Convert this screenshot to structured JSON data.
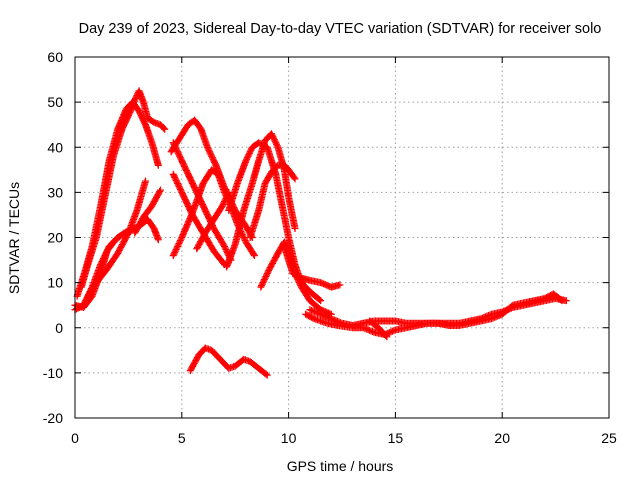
{
  "chart_data": {
    "type": "scatter",
    "title": "Day 239 of 2023, Sidereal Day-to-day VTEC variation (SDTVAR) for receiver solo",
    "xlabel": "GPS time / hours",
    "ylabel": "SDTVAR / TECUs",
    "xlim": [
      0,
      25
    ],
    "ylim": [
      -20,
      60
    ],
    "xticks": [
      0,
      5,
      10,
      15,
      20,
      25
    ],
    "yticks": [
      -20,
      -10,
      0,
      10,
      20,
      30,
      40,
      50,
      60
    ],
    "grid": true,
    "legend": "none",
    "marker": "+",
    "color": "#ff0000",
    "series": [
      {
        "name": "s1",
        "points": [
          [
            0,
            4
          ],
          [
            0.4,
            5
          ],
          [
            0.8,
            9
          ],
          [
            1.2,
            14
          ],
          [
            1.6,
            18
          ],
          [
            2.0,
            20
          ],
          [
            2.5,
            21.5
          ],
          [
            3.0,
            22.5
          ],
          [
            3.4,
            24
          ],
          [
            3.7,
            22
          ],
          [
            3.9,
            19.5
          ]
        ]
      },
      {
        "name": "s2",
        "points": [
          [
            0.1,
            7
          ],
          [
            0.5,
            13
          ],
          [
            0.8,
            18
          ],
          [
            1.2,
            27
          ],
          [
            1.6,
            37
          ],
          [
            2.0,
            44
          ],
          [
            2.4,
            48.5
          ],
          [
            2.7,
            50
          ],
          [
            3.0,
            48
          ],
          [
            3.3,
            45
          ],
          [
            3.6,
            41
          ],
          [
            3.9,
            36
          ]
        ]
      },
      {
        "name": "s3",
        "points": [
          [
            0,
            5
          ],
          [
            0.4,
            4.5
          ],
          [
            0.8,
            7
          ],
          [
            1.2,
            12
          ],
          [
            1.5,
            17
          ],
          [
            1.9,
            19.5
          ],
          [
            2.3,
            21
          ],
          [
            2.6,
            21.5
          ]
        ]
      },
      {
        "name": "s4",
        "points": [
          [
            0.3,
            9
          ],
          [
            0.6,
            14
          ],
          [
            1.0,
            20
          ],
          [
            1.4,
            29
          ],
          [
            1.8,
            38
          ],
          [
            2.2,
            44
          ],
          [
            2.6,
            48
          ],
          [
            2.8,
            50.5
          ],
          [
            3.0,
            52.5
          ],
          [
            3.2,
            50
          ],
          [
            3.4,
            46.5
          ],
          [
            3.7,
            45.5
          ],
          [
            4.0,
            45
          ],
          [
            4.2,
            44
          ]
        ]
      },
      {
        "name": "s5",
        "points": [
          [
            0.6,
            7
          ],
          [
            1.0,
            10
          ],
          [
            1.5,
            13
          ],
          [
            2.0,
            16.5
          ],
          [
            2.5,
            21
          ],
          [
            2.9,
            26
          ],
          [
            3.3,
            32.5
          ]
        ]
      },
      {
        "name": "s6",
        "points": [
          [
            2.8,
            21
          ],
          [
            3.2,
            24.5
          ],
          [
            3.6,
            27
          ],
          [
            4.0,
            30.5
          ]
        ]
      },
      {
        "name": "s7",
        "points": [
          [
            4.6,
            41
          ],
          [
            5.0,
            37
          ],
          [
            5.5,
            32
          ],
          [
            6.0,
            27
          ],
          [
            6.5,
            22
          ],
          [
            7.0,
            18
          ],
          [
            7.3,
            15
          ]
        ]
      },
      {
        "name": "s8",
        "points": [
          [
            4.6,
            34
          ],
          [
            5.0,
            30
          ],
          [
            5.5,
            25
          ],
          [
            6.0,
            21
          ],
          [
            6.5,
            17
          ],
          [
            7.0,
            14
          ]
        ]
      },
      {
        "name": "s9",
        "points": [
          [
            4.6,
            16
          ],
          [
            5.0,
            20
          ],
          [
            5.5,
            25.5
          ],
          [
            6.0,
            32
          ],
          [
            6.4,
            35
          ],
          [
            6.7,
            34
          ],
          [
            7.0,
            30
          ],
          [
            7.3,
            27
          ],
          [
            7.6,
            23
          ],
          [
            8.0,
            19
          ],
          [
            8.4,
            16
          ]
        ]
      },
      {
        "name": "s10",
        "points": [
          [
            4.5,
            39
          ],
          [
            4.9,
            42
          ],
          [
            5.3,
            45
          ],
          [
            5.6,
            46
          ],
          [
            5.9,
            44
          ],
          [
            6.2,
            40
          ],
          [
            6.6,
            36
          ],
          [
            7.0,
            31
          ],
          [
            7.5,
            26
          ],
          [
            8.0,
            22.5
          ],
          [
            8.3,
            20
          ]
        ]
      },
      {
        "name": "s11",
        "points": [
          [
            5.7,
            17.5
          ],
          [
            6.1,
            21
          ],
          [
            6.5,
            24
          ],
          [
            6.9,
            27
          ],
          [
            7.2,
            30
          ]
        ]
      },
      {
        "name": "s12",
        "points": [
          [
            7.1,
            13.5
          ],
          [
            7.5,
            18.5
          ],
          [
            7.9,
            26
          ],
          [
            8.3,
            32
          ],
          [
            8.6,
            37
          ],
          [
            8.9,
            41.5
          ],
          [
            9.2,
            43
          ],
          [
            9.5,
            40
          ],
          [
            9.8,
            35
          ],
          [
            10.0,
            29
          ],
          [
            10.3,
            22
          ]
        ]
      },
      {
        "name": "s13",
        "points": [
          [
            7.2,
            26
          ],
          [
            7.6,
            32
          ],
          [
            8.0,
            37
          ],
          [
            8.3,
            40
          ],
          [
            8.6,
            41
          ],
          [
            9.0,
            40
          ],
          [
            9.4,
            34
          ],
          [
            9.7,
            27
          ],
          [
            10.0,
            20
          ],
          [
            10.3,
            14
          ],
          [
            10.6,
            10
          ],
          [
            11.0,
            8
          ],
          [
            11.5,
            6
          ]
        ]
      },
      {
        "name": "s14",
        "points": [
          [
            8.2,
            20
          ],
          [
            8.6,
            26
          ],
          [
            8.9,
            32
          ],
          [
            9.2,
            34.5
          ],
          [
            9.5,
            36
          ],
          [
            9.8,
            36
          ],
          [
            10.0,
            35
          ],
          [
            10.3,
            33
          ]
        ]
      },
      {
        "name": "s15",
        "points": [
          [
            8.7,
            9
          ],
          [
            9.1,
            13
          ],
          [
            9.5,
            16.5
          ],
          [
            9.8,
            19
          ],
          [
            10.0,
            17
          ],
          [
            10.3,
            12
          ],
          [
            10.6,
            9
          ],
          [
            11.0,
            6
          ],
          [
            11.5,
            4
          ],
          [
            12.0,
            3
          ]
        ]
      },
      {
        "name": "s16",
        "points": [
          [
            9.8,
            18
          ],
          [
            10.2,
            12
          ],
          [
            10.6,
            11
          ],
          [
            11.0,
            10.5
          ],
          [
            11.5,
            10
          ],
          [
            12.0,
            9
          ],
          [
            12.4,
            9.5
          ]
        ]
      },
      {
        "name": "s17",
        "points": [
          [
            11.0,
            4
          ],
          [
            11.5,
            3
          ],
          [
            12.0,
            2
          ],
          [
            12.5,
            1
          ],
          [
            13.0,
            0.5
          ],
          [
            13.5,
            1
          ],
          [
            14.0,
            1.5
          ],
          [
            14.5,
            1.5
          ],
          [
            15.0,
            1.5
          ],
          [
            15.5,
            1
          ],
          [
            16.0,
            1
          ],
          [
            16.5,
            1
          ],
          [
            17.0,
            1
          ],
          [
            17.5,
            1
          ],
          [
            18.0,
            1
          ],
          [
            18.5,
            1.5
          ],
          [
            19.0,
            2
          ],
          [
            19.5,
            3
          ],
          [
            20.0,
            3.5
          ],
          [
            20.5,
            4.5
          ],
          [
            21.0,
            5
          ],
          [
            21.5,
            5.5
          ],
          [
            22.0,
            6
          ],
          [
            22.5,
            6.5
          ],
          [
            23.0,
            6
          ]
        ]
      },
      {
        "name": "s18",
        "points": [
          [
            10.8,
            3
          ],
          [
            11.2,
            2
          ],
          [
            11.8,
            1
          ],
          [
            12.3,
            0.5
          ],
          [
            13.0,
            0
          ],
          [
            13.5,
            0
          ],
          [
            14.0,
            -1
          ],
          [
            14.5,
            -1.5
          ],
          [
            15.0,
            -0.5
          ],
          [
            15.5,
            0
          ],
          [
            16.0,
            0.5
          ],
          [
            16.5,
            1
          ],
          [
            17.0,
            1
          ],
          [
            17.5,
            0.5
          ],
          [
            18.0,
            0.5
          ],
          [
            18.5,
            1
          ],
          [
            19.0,
            1.5
          ],
          [
            19.5,
            2
          ],
          [
            20.0,
            3
          ],
          [
            20.5,
            5
          ],
          [
            21.0,
            5.5
          ],
          [
            21.5,
            6
          ],
          [
            22.0,
            6.5
          ],
          [
            22.4,
            7.5
          ],
          [
            22.8,
            6
          ]
        ]
      },
      {
        "name": "s19",
        "points": [
          [
            13.8,
            1.5
          ],
          [
            14.2,
            0
          ],
          [
            14.6,
            -2
          ]
        ]
      },
      {
        "name": "s20",
        "points": [
          [
            5.4,
            -9.5
          ],
          [
            5.8,
            -6
          ],
          [
            6.1,
            -4.5
          ],
          [
            6.4,
            -5
          ],
          [
            6.8,
            -7
          ],
          [
            7.2,
            -9
          ],
          [
            7.5,
            -8.5
          ],
          [
            7.9,
            -7
          ],
          [
            8.2,
            -7.5
          ],
          [
            8.6,
            -9
          ],
          [
            9.0,
            -10.5
          ]
        ]
      }
    ]
  }
}
